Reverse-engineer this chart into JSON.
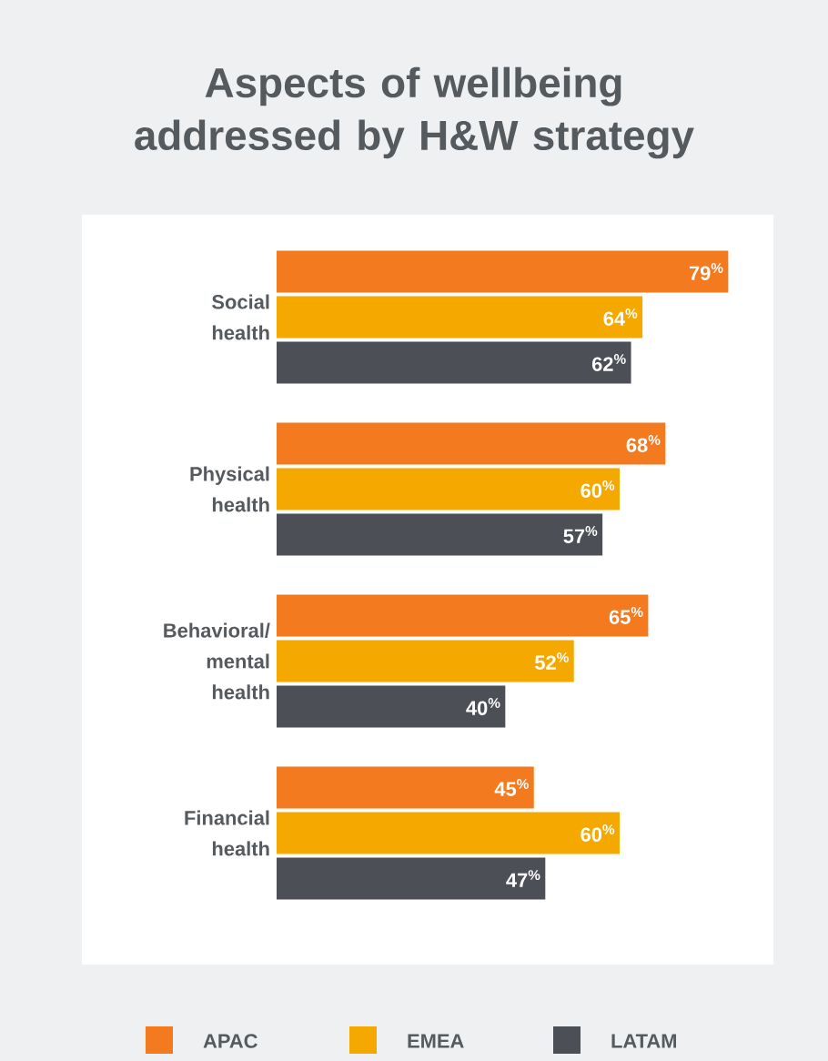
{
  "chart_data": {
    "type": "bar",
    "orientation": "horizontal",
    "title": "Aspects of wellbeing addressed by H&W strategy",
    "categories": [
      "Social health",
      "Physical health",
      "Behavioral/ mental health",
      "Financial health"
    ],
    "series": [
      {
        "name": "APAC",
        "color": "#f47a20",
        "values": [
          79,
          68,
          65,
          45
        ],
        "value_labels": [
          "79$^{%}$",
          "68$^{%}$",
          "65$^{%}$",
          "45$^{%}$"
        ]
      },
      {
        "name": "EMEA",
        "color": "#f5a800",
        "values": [
          64,
          60,
          52,
          60
        ],
        "value_labels": [
          "64$^{%}$",
          "60$^{%}$",
          "52$^{%}$",
          "60$^{%}$"
        ]
      },
      {
        "name": "LATAM",
        "color": "#4d4f57",
        "values": [
          62,
          57,
          40,
          47
        ],
        "value_labels": [
          "62$^{%}$",
          "57$^{%}$",
          "40$^{%}$",
          "47$^{%}$"
        ]
      }
    ],
    "legend": "bottom",
    "grid": false
  }
}
